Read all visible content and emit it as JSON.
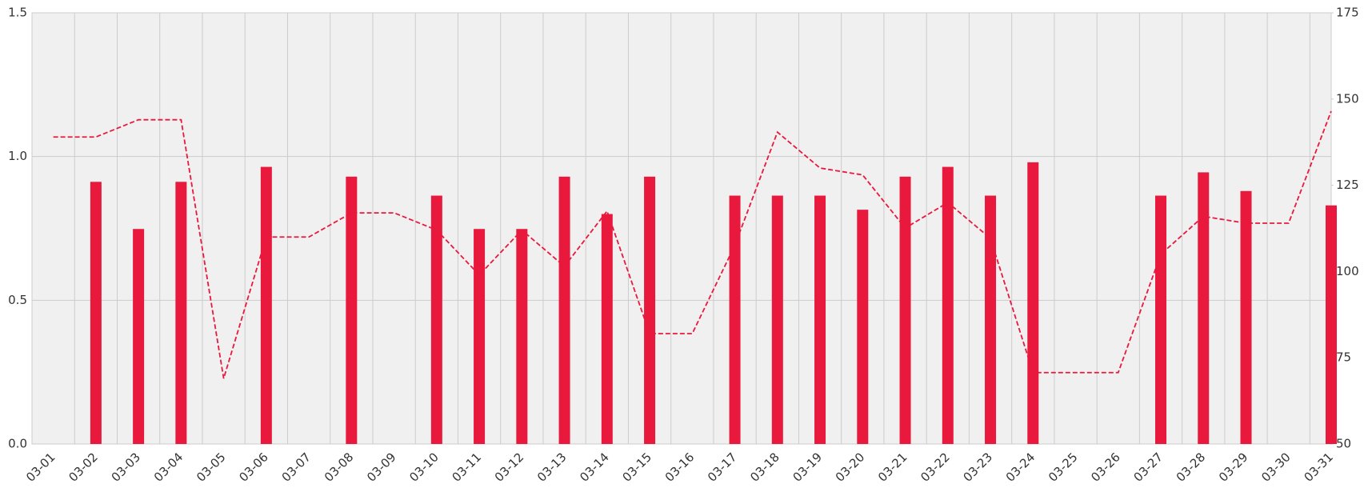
{
  "chart_data": {
    "type": "bar-line",
    "categories": [
      "03-01",
      "03-02",
      "03-03",
      "03-04",
      "03-05",
      "03-06",
      "03-07",
      "03-08",
      "03-09",
      "03-10",
      "03-11",
      "03-12",
      "03-13",
      "03-14",
      "03-15",
      "03-16",
      "03-17",
      "03-18",
      "03-19",
      "03-20",
      "03-21",
      "03-22",
      "03-23",
      "03-24",
      "03-25",
      "03-26",
      "03-27",
      "03-28",
      "03-29",
      "03-30",
      "03-31"
    ],
    "series": [
      {
        "type": "bar",
        "color": "#e8193c",
        "values": [
          0,
          0.912,
          0.748,
          0.912,
          0,
          0.964,
          0,
          0.93,
          0,
          0.864,
          0.748,
          0.748,
          0.93,
          0.8,
          0.93,
          0,
          0.864,
          0.864,
          0.864,
          0.815,
          0.93,
          0.964,
          0.864,
          0.98,
          0,
          0,
          0.864,
          0.945,
          0.88,
          0,
          0.83
        ]
      },
      {
        "type": "line",
        "axis": "y2",
        "color": "#e8193c",
        "dashed": true,
        "values": [
          139,
          139,
          144,
          144,
          69,
          110,
          110,
          117,
          117,
          112,
          99,
          112,
          101.5,
          117.5,
          82,
          82,
          107.6,
          140.4,
          130,
          128,
          112.6,
          120,
          109.6,
          70.7,
          70.7,
          70.7,
          105,
          116,
          114,
          114,
          146.5
        ]
      }
    ],
    "ylim": [
      0,
      1.5
    ],
    "yticks": [
      {
        "value": 0,
        "label": "0.0"
      },
      0.5,
      {
        "value": 1,
        "label": "1.0"
      },
      1.5
    ],
    "y2lim": [
      50,
      175
    ],
    "y2ticks": [
      50,
      75,
      100,
      125,
      150,
      175
    ],
    "grid": true
  }
}
